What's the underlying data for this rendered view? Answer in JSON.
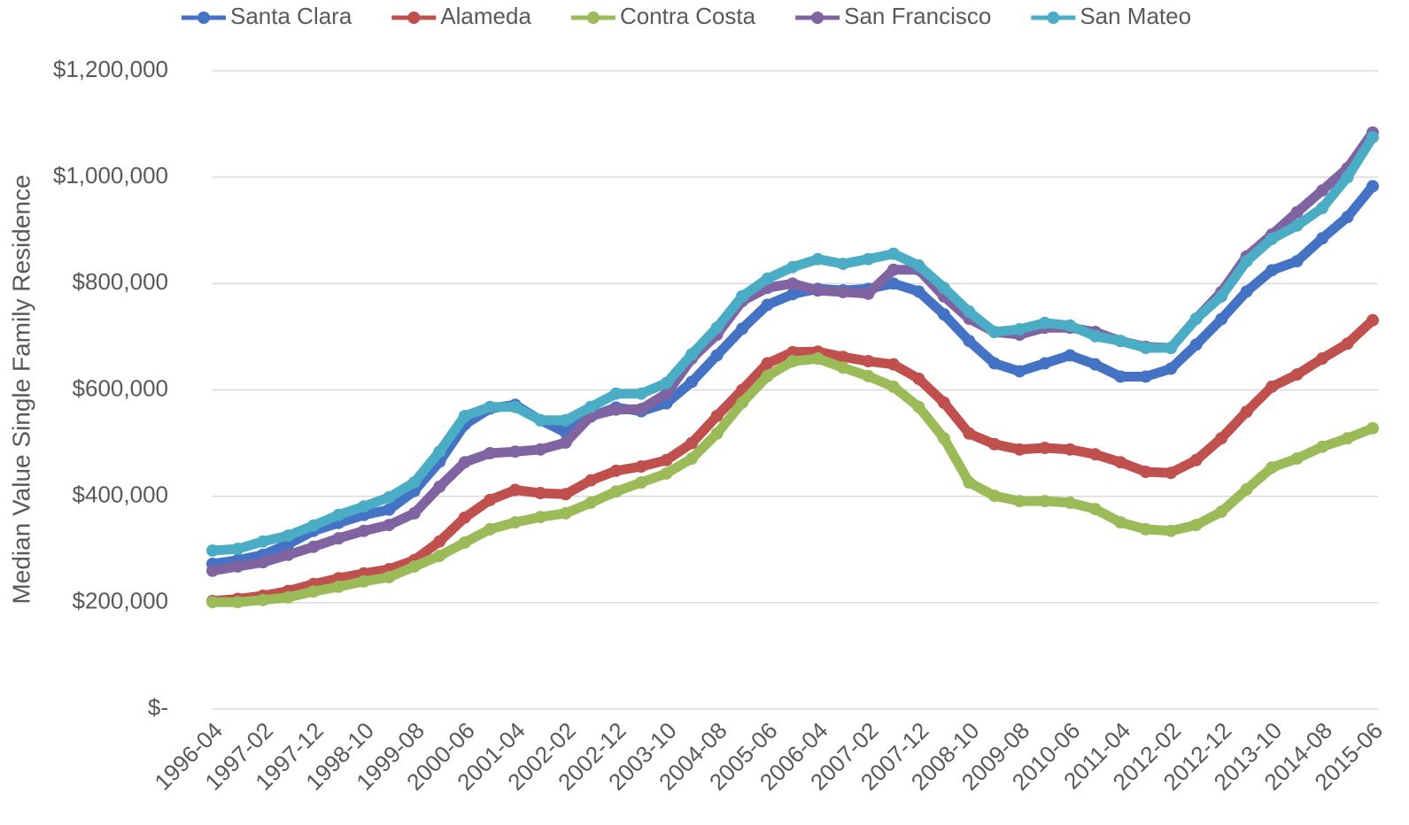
{
  "chart_data": {
    "type": "line",
    "y_label": "Median Value Single Family Residence",
    "categories": [
      "1996-04",
      null,
      "1997-02",
      null,
      "1997-12",
      null,
      "1998-10",
      null,
      "1999-08",
      null,
      "2000-06",
      null,
      "2001-04",
      null,
      "2002-02",
      null,
      "2002-12",
      null,
      "2003-10",
      null,
      "2004-08",
      null,
      "2005-06",
      null,
      "2006-04",
      null,
      "2007-02",
      null,
      "2007-12",
      null,
      "2008-10",
      null,
      "2009-08",
      null,
      "2010-06",
      null,
      "2011-04",
      null,
      "2012-02",
      null,
      "2012-12",
      null,
      "2013-10",
      null,
      "2014-08",
      null,
      "2015-06"
    ],
    "series": [
      {
        "name": "Santa Clara",
        "color": "#4472c4",
        "values": [
          273000,
          280000,
          290000,
          310000,
          335000,
          350000,
          365000,
          375000,
          410000,
          465000,
          535000,
          565000,
          572000,
          543000,
          520000,
          550000,
          567000,
          560000,
          575000,
          615000,
          665000,
          715000,
          760000,
          780000,
          790000,
          787000,
          790000,
          800000,
          785000,
          742000,
          692000,
          650000,
          635000,
          650000,
          665000,
          648000,
          625000,
          625000,
          640000,
          685000,
          733000,
          785000,
          825000,
          842000,
          885000,
          925000,
          983000
        ]
      },
      {
        "name": "Alameda",
        "color": "#c0504d",
        "values": [
          203000,
          207000,
          213000,
          222000,
          235000,
          246000,
          255000,
          263000,
          280000,
          315000,
          360000,
          393000,
          412000,
          406000,
          404000,
          430000,
          448000,
          456000,
          468000,
          500000,
          551000,
          600000,
          650000,
          671000,
          672000,
          662000,
          654000,
          648000,
          621000,
          576000,
          518000,
          498000,
          488000,
          491000,
          488000,
          479000,
          464000,
          446000,
          444000,
          468000,
          509000,
          559000,
          606000,
          629000,
          659000,
          687000,
          731000
        ]
      },
      {
        "name": "Contra Costa",
        "color": "#9bbb59",
        "values": [
          201000,
          201000,
          205000,
          210000,
          221000,
          230000,
          240000,
          248000,
          268000,
          288000,
          313000,
          338000,
          351000,
          361000,
          368000,
          388000,
          409000,
          426000,
          443000,
          471000,
          518000,
          576000,
          626000,
          654000,
          659000,
          642000,
          626000,
          606000,
          568000,
          509000,
          426000,
          401000,
          391000,
          391000,
          388000,
          376000,
          351000,
          338000,
          335000,
          346000,
          371000,
          413000,
          454000,
          471000,
          493000,
          509000,
          528000
        ]
      },
      {
        "name": "San Francisco",
        "color": "#8064a2",
        "values": [
          260000,
          268000,
          276000,
          290000,
          305000,
          321000,
          335000,
          346000,
          368000,
          418000,
          464000,
          481000,
          484000,
          488000,
          501000,
          551000,
          563000,
          564000,
          593000,
          659000,
          704000,
          767000,
          792000,
          800000,
          787000,
          784000,
          781000,
          826000,
          826000,
          776000,
          734000,
          709000,
          704000,
          717000,
          717000,
          709000,
          692000,
          681000,
          679000,
          734000,
          784000,
          851000,
          892000,
          934000,
          975000,
          1017000,
          1084000
        ]
      },
      {
        "name": "San Mateo",
        "color": "#4bacc6",
        "values": [
          298000,
          301000,
          315000,
          326000,
          345000,
          365000,
          381000,
          398000,
          426000,
          484000,
          551000,
          568000,
          568000,
          543000,
          543000,
          568000,
          593000,
          593000,
          613000,
          667000,
          717000,
          776000,
          809000,
          831000,
          846000,
          837000,
          846000,
          856000,
          834000,
          792000,
          747000,
          709000,
          714000,
          726000,
          721000,
          701000,
          692000,
          679000,
          679000,
          734000,
          776000,
          842000,
          884000,
          909000,
          942000,
          1000000,
          1075000
        ]
      }
    ],
    "ylim": [
      0,
      1200000
    ],
    "yticks": [
      {
        "value": 0,
        "label": "$-"
      },
      {
        "value": 200000,
        "label": "$200,000"
      },
      {
        "value": 400000,
        "label": "$400,000"
      },
      {
        "value": 600000,
        "label": "$600,000"
      },
      {
        "value": 800000,
        "label": "$800,000"
      },
      {
        "value": 1000000,
        "label": "$1,000,000"
      },
      {
        "value": 1200000,
        "label": "$1,200,000"
      }
    ],
    "grid": true,
    "legend": "top"
  }
}
